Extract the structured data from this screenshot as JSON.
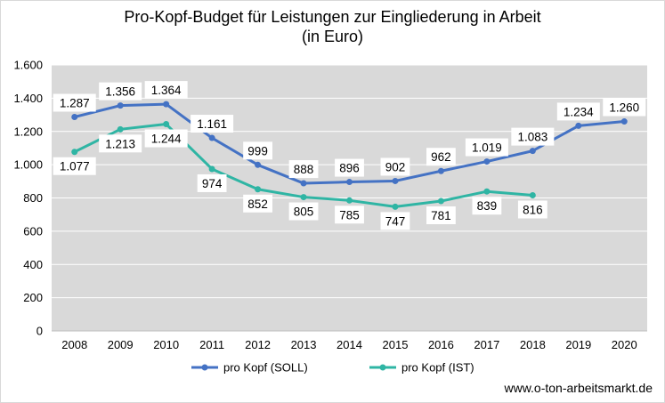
{
  "title_line1": "Pro-Kopf-Budget für Leistungen zur Eingliederung in Arbeit",
  "title_line2": "(in Euro)",
  "source": "www.o-ton-arbeitsmarkt.de",
  "chart_data": {
    "type": "line",
    "title": "Pro-Kopf-Budget für Leistungen zur Eingliederung in Arbeit (in Euro)",
    "xlabel": "",
    "ylabel": "",
    "categories": [
      "2008",
      "2009",
      "2010",
      "2011",
      "2012",
      "2013",
      "2014",
      "2015",
      "2016",
      "2017",
      "2018",
      "2019",
      "2020"
    ],
    "ylim": [
      0,
      1600
    ],
    "yticks": [
      0,
      200,
      400,
      600,
      800,
      1000,
      1200,
      1400,
      1600
    ],
    "ytick_labels": [
      "0",
      "200",
      "400",
      "600",
      "800",
      "1.000",
      "1.200",
      "1.400",
      "1.600"
    ],
    "grid": true,
    "legend_position": "bottom",
    "plot_background": "#d9d9d9",
    "series": [
      {
        "name": "pro Kopf (SOLL)",
        "color": "#4472c4",
        "values": [
          1287,
          1356,
          1364,
          1161,
          999,
          888,
          896,
          902,
          962,
          1019,
          1083,
          1234,
          1260
        ],
        "labels": [
          "1.287",
          "1.356",
          "1.364",
          "1.161",
          "999",
          "888",
          "896",
          "902",
          "962",
          "1.019",
          "1.083",
          "1.234",
          "1.260"
        ],
        "label_side": [
          "above",
          "above",
          "above",
          "above",
          "above",
          "above",
          "above",
          "above",
          "above",
          "above",
          "above",
          "above",
          "above"
        ]
      },
      {
        "name": "pro Kopf (IST)",
        "color": "#2fb5a4",
        "values": [
          1077,
          1213,
          1244,
          974,
          852,
          805,
          785,
          747,
          781,
          839,
          816,
          null,
          null
        ],
        "labels": [
          "1.077",
          "1.213",
          "1.244",
          "974",
          "852",
          "805",
          "785",
          "747",
          "781",
          "839",
          "816",
          "",
          ""
        ],
        "label_side": [
          "below",
          "below",
          "below",
          "below",
          "below",
          "below",
          "below",
          "below",
          "below",
          "below",
          "below",
          "below",
          "below"
        ]
      }
    ]
  }
}
